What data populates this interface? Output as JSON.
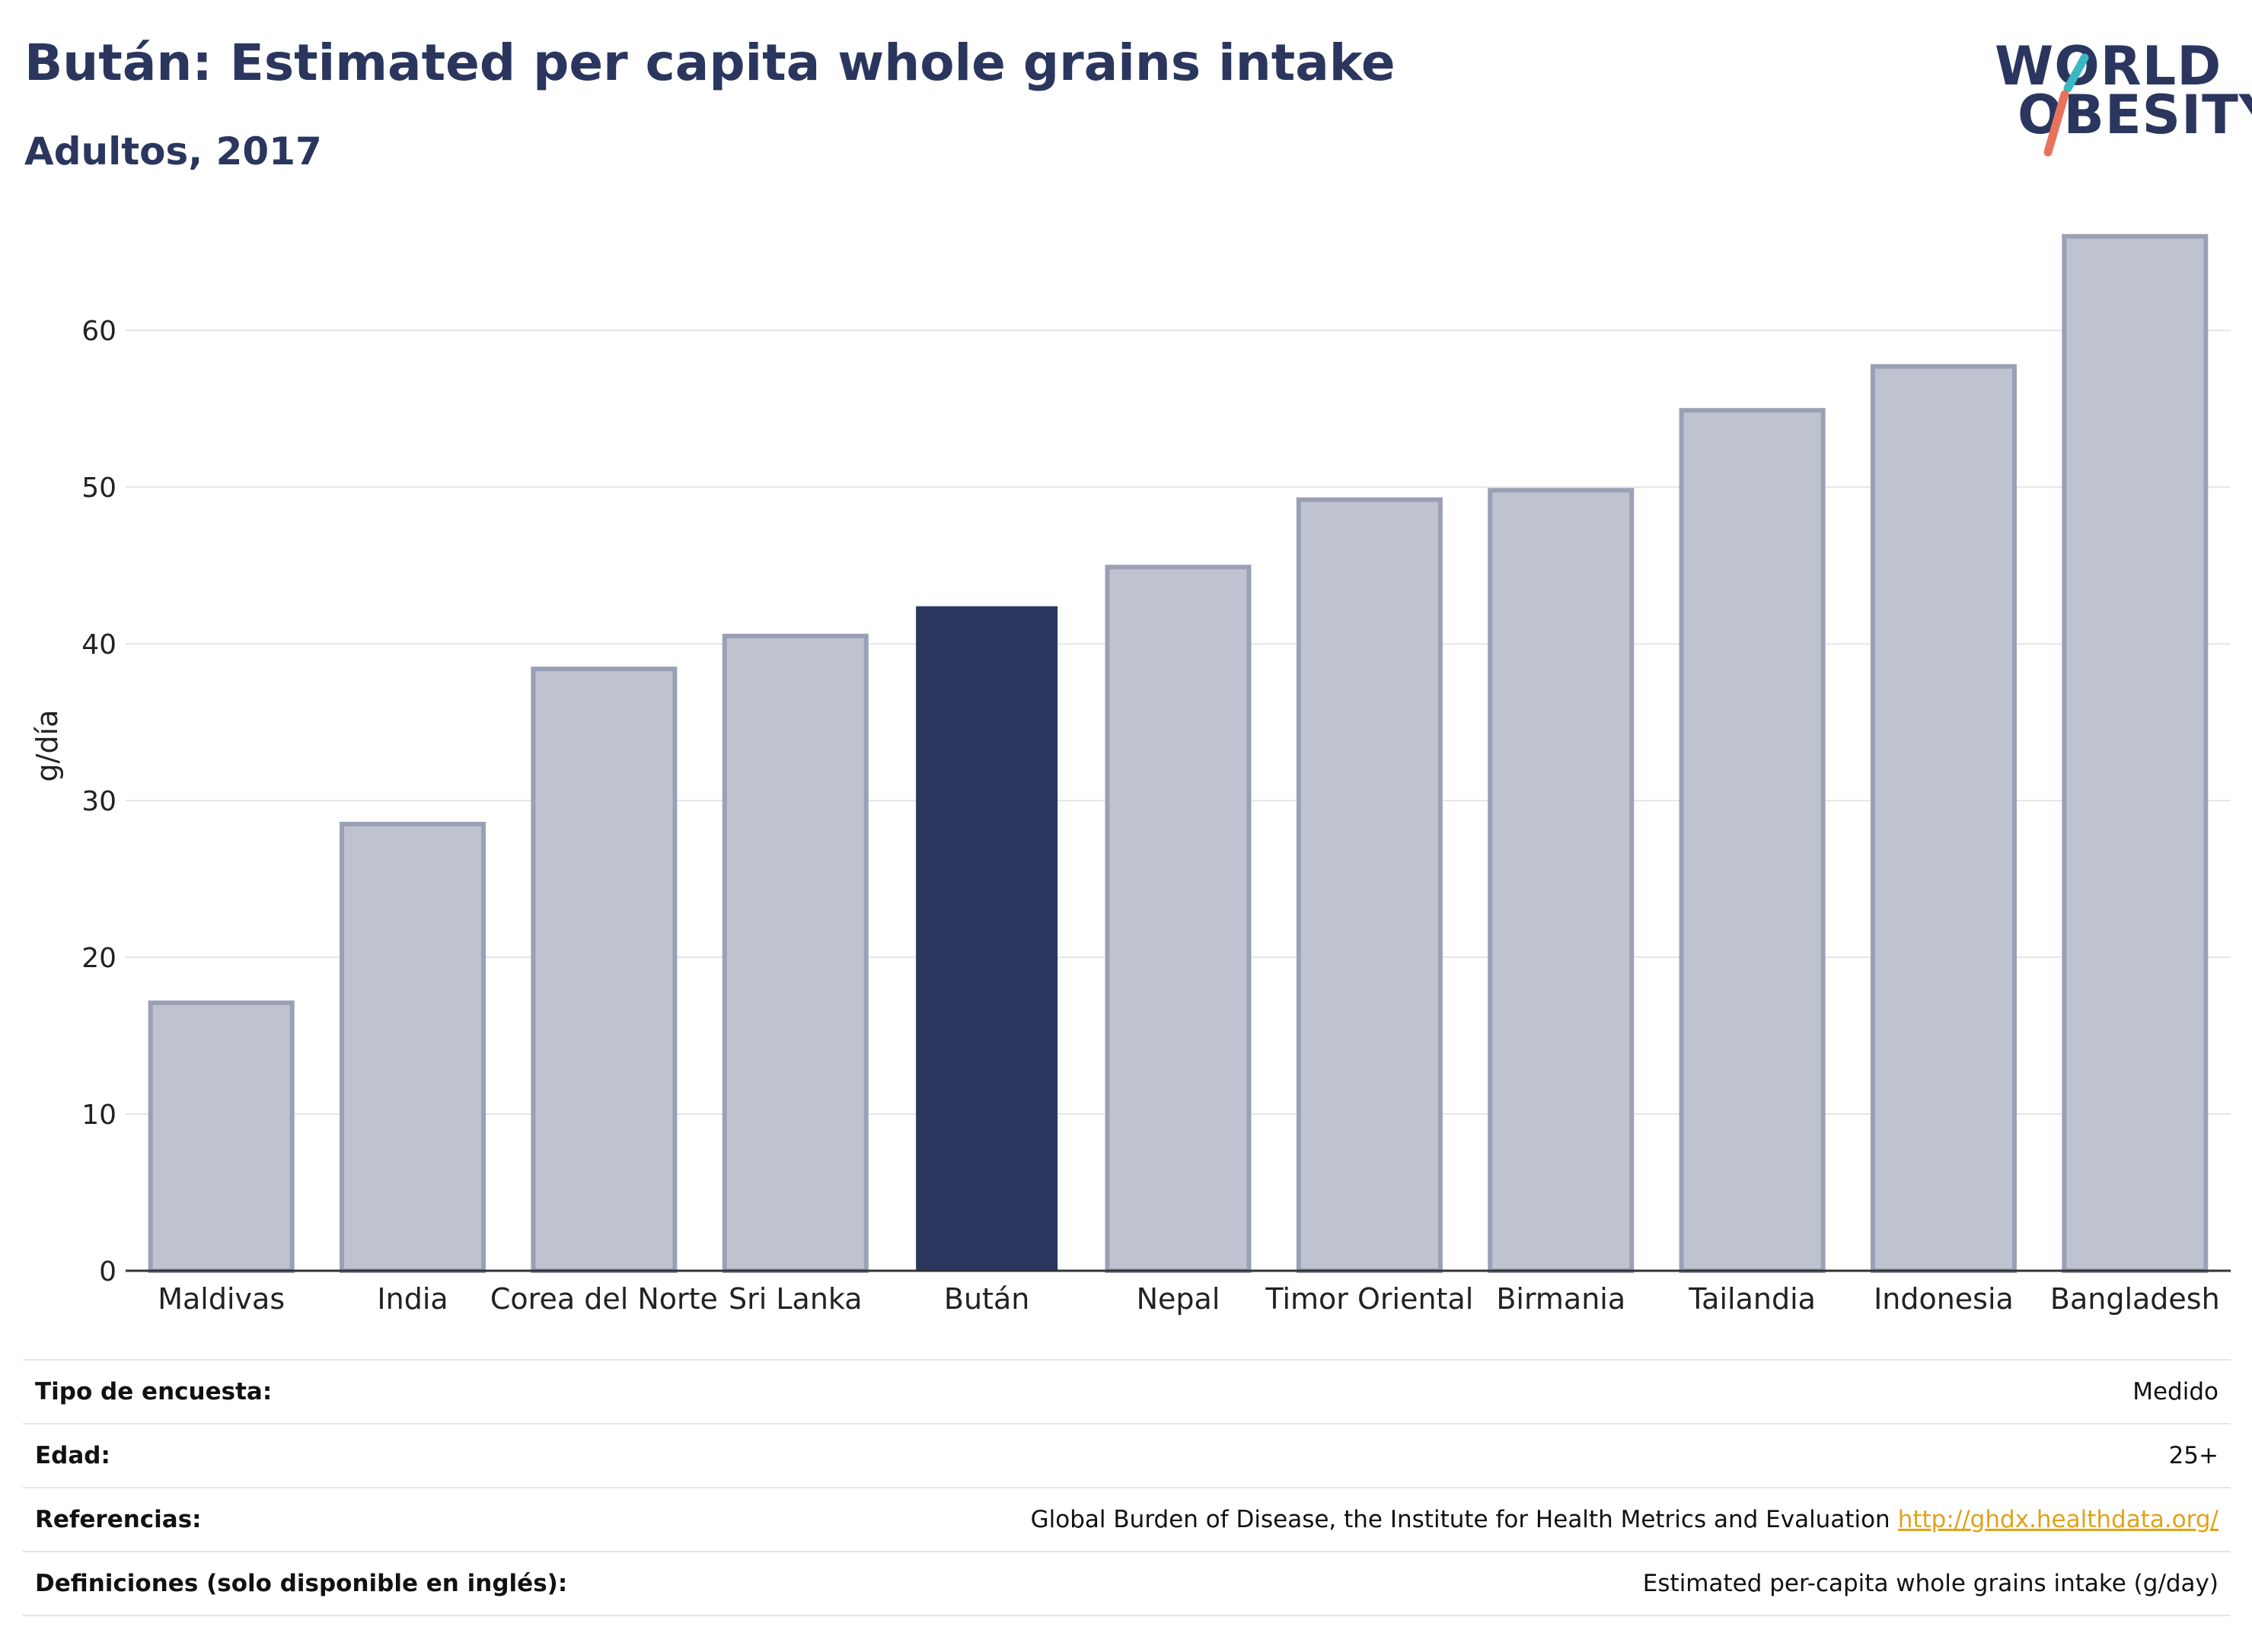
{
  "header": {
    "title": "Bután: Estimated per capita whole grains intake",
    "subtitle": "Adultos, 2017"
  },
  "logo": {
    "line1": "WORLD",
    "line2": "OBESITY",
    "accent_teal": "#3bb8c4",
    "accent_coral": "#e8735a"
  },
  "chart_data": {
    "type": "bar",
    "title": "Bután: Estimated per capita whole grains intake",
    "subtitle": "Adultos, 2017",
    "xlabel": "",
    "ylabel": "g/día",
    "ylim": [
      0,
      67
    ],
    "yticks": [
      0,
      10,
      20,
      30,
      40,
      50,
      60
    ],
    "grid": true,
    "highlight": "Bután",
    "colors": {
      "bar": "#bfc3d0",
      "bar_edge": "#9aa0b5",
      "highlight": "#2b365f"
    },
    "categories": [
      "Maldivas",
      "India",
      "Corea del Norte",
      "Sri Lanka",
      "Bután",
      "Nepal",
      "Timor Oriental",
      "Birmania",
      "Tailandia",
      "Indonesia",
      "Bangladesh"
    ],
    "values": [
      17.1,
      28.5,
      38.4,
      40.5,
      42.4,
      44.9,
      49.2,
      49.8,
      54.9,
      57.7,
      66.0
    ]
  },
  "meta": [
    {
      "key": "Tipo de encuesta:",
      "value": "Medido",
      "link": ""
    },
    {
      "key": "Edad:",
      "value": "25+",
      "link": ""
    },
    {
      "key": "Referencias:",
      "value": "Global Burden of Disease, the Institute for Health Metrics and Evaluation",
      "link": "http://ghdx.healthdata.org/"
    },
    {
      "key": "Definiciones (solo disponible en inglés):",
      "value": "Estimated per-capita whole grains intake (g/day)",
      "link": ""
    }
  ]
}
